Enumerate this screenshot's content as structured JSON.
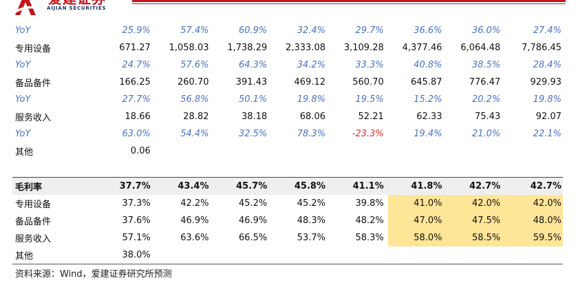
{
  "header": {
    "logo_cn": "爱建证券",
    "logo_en": "AIJIAN SECURITIES",
    "brand_color": "#c4161c"
  },
  "rows": [
    {
      "type": "yoy",
      "label": "YoY",
      "values": [
        "25.9%",
        "57.4%",
        "60.9%",
        "32.4%",
        "29.7%",
        "36.6%",
        "36.0%",
        "27.4%"
      ]
    },
    {
      "type": "data",
      "label": "专用设备",
      "values": [
        "671.27",
        "1,058.03",
        "1,738.29",
        "2,333.08",
        "3,109.28",
        "4,377.46",
        "6,064.48",
        "7,786.45"
      ]
    },
    {
      "type": "yoy",
      "label": "YoY",
      "values": [
        "24.7%",
        "57.6%",
        "64.3%",
        "34.2%",
        "33.3%",
        "40.8%",
        "38.5%",
        "28.4%"
      ]
    },
    {
      "type": "data",
      "label": "备品备件",
      "values": [
        "166.25",
        "260.70",
        "391.43",
        "469.12",
        "560.70",
        "645.87",
        "776.47",
        "929.93"
      ]
    },
    {
      "type": "yoy",
      "label": "YoY",
      "values": [
        "27.7%",
        "56.8%",
        "50.1%",
        "19.8%",
        "19.5%",
        "15.2%",
        "20.2%",
        "19.8%"
      ]
    },
    {
      "type": "data",
      "label": "服务收入",
      "values": [
        "18.66",
        "28.82",
        "38.18",
        "68.06",
        "52.21",
        "62.33",
        "75.43",
        "92.07"
      ]
    },
    {
      "type": "yoy",
      "label": "YoY",
      "values": [
        "63.0%",
        "54.4%",
        "32.5%",
        "78.3%",
        "-23.3%",
        "19.4%",
        "21.0%",
        "22.1%"
      ]
    },
    {
      "type": "data",
      "label": "其他",
      "values": [
        "0.06",
        "",
        "",
        "",
        "",
        "",
        "",
        ""
      ]
    },
    {
      "type": "spacer",
      "label": "",
      "values": [
        "",
        "",
        "",
        "",
        "",
        "",
        "",
        ""
      ]
    },
    {
      "type": "gm",
      "label": "毛利率",
      "values": [
        "37.7%",
        "43.4%",
        "45.7%",
        "45.8%",
        "41.1%",
        "41.8%",
        "42.7%",
        "42.7%"
      ]
    },
    {
      "type": "margin",
      "label": "专用设备",
      "values": [
        "37.3%",
        "42.2%",
        "45.2%",
        "45.2%",
        "39.8%",
        "41.0%",
        "42.0%",
        "42.0%"
      ]
    },
    {
      "type": "margin",
      "label": "备品备件",
      "values": [
        "37.6%",
        "46.9%",
        "46.9%",
        "48.3%",
        "48.2%",
        "47.0%",
        "47.5%",
        "48.0%"
      ]
    },
    {
      "type": "margin",
      "label": "服务收入",
      "values": [
        "57.1%",
        "63.6%",
        "66.5%",
        "53.7%",
        "58.3%",
        "58.0%",
        "58.5%",
        "59.5%"
      ]
    },
    {
      "type": "margin",
      "label": "其他",
      "values": [
        "38.0%",
        "",
        "",
        "",
        "",
        "",
        "",
        ""
      ]
    }
  ],
  "highlight_color": "#ffe597",
  "negative_color": "#e03030",
  "yoy_color": "#4a72c4",
  "source": "资料来源：Wind，爱建证券研究所预测"
}
